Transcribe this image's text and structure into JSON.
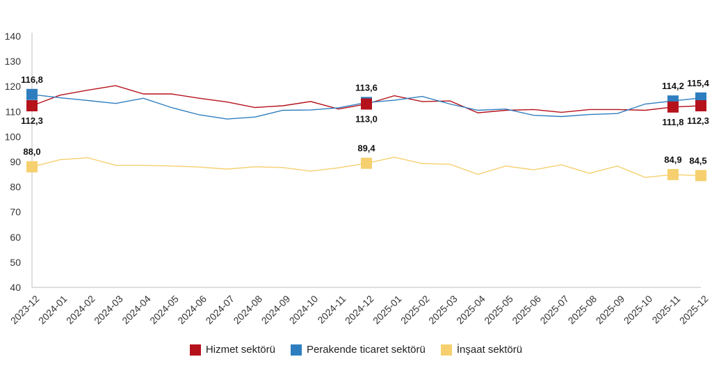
{
  "chart_data": {
    "type": "line",
    "x": [
      "2023-12",
      "2024-01",
      "2024-02",
      "2024-03",
      "2024-04",
      "2024-05",
      "2024-06",
      "2024-07",
      "2024-08",
      "2024-09",
      "2024-10",
      "2024-11",
      "2024-12",
      "2025-01",
      "2025-02",
      "2025-03",
      "2025-04",
      "2025-05",
      "2025-06",
      "2025-07",
      "2025-08",
      "2025-09",
      "2025-10",
      "2025-11",
      "2025-12"
    ],
    "ylim": [
      40,
      140
    ],
    "yticks": [
      "40",
      "50",
      "60",
      "70",
      "80",
      "90",
      "100",
      "110",
      "120",
      "130",
      "140"
    ],
    "grid": false,
    "legend_position": "bottom",
    "series": [
      {
        "name": "Hizmet sektörü",
        "color": "#B5121B",
        "values": [
          112.3,
          116.5,
          118.5,
          120.3,
          117.0,
          117.0,
          115.3,
          113.8,
          111.6,
          112.3,
          114.0,
          111.0,
          113.0,
          116.3,
          114.0,
          114.2,
          109.5,
          110.5,
          110.8,
          109.7,
          110.8,
          110.8,
          110.5,
          111.8,
          112.3
        ],
        "markers": [
          {
            "index": 0,
            "label": "112,3",
            "pos": "below"
          },
          {
            "index": 12,
            "label": "113,0",
            "pos": "below"
          },
          {
            "index": 23,
            "label": "111,8",
            "pos": "below"
          },
          {
            "index": 24,
            "label": "112,3",
            "pos": "below"
          }
        ]
      },
      {
        "name": "Perakende ticaret sektörü",
        "color": "#2E7EBF",
        "values": [
          116.8,
          115.5,
          114.4,
          113.2,
          115.3,
          111.6,
          108.7,
          107.0,
          107.8,
          110.5,
          110.6,
          111.5,
          113.6,
          114.5,
          116.0,
          113.0,
          110.5,
          111.0,
          108.5,
          108.0,
          108.8,
          109.2,
          113.0,
          114.2,
          115.4
        ],
        "markers": [
          {
            "index": 0,
            "label": "116,8",
            "pos": "above"
          },
          {
            "index": 12,
            "label": "113,6",
            "pos": "above"
          },
          {
            "index": 23,
            "label": "114,2",
            "pos": "above"
          },
          {
            "index": 24,
            "label": "115,4",
            "pos": "above"
          }
        ]
      },
      {
        "name": "İnşaat sektörü",
        "color": "#F6D06F",
        "values": [
          88.0,
          90.8,
          91.6,
          88.6,
          88.6,
          88.3,
          87.9,
          87.1,
          88.0,
          87.7,
          86.3,
          87.6,
          89.4,
          91.8,
          89.3,
          89.0,
          85.0,
          88.3,
          86.8,
          88.8,
          85.4,
          88.3,
          83.8,
          84.9,
          84.5
        ],
        "markers": [
          {
            "index": 0,
            "label": "88,0",
            "pos": "above"
          },
          {
            "index": 12,
            "label": "89,4",
            "pos": "above"
          },
          {
            "index": 23,
            "label": "84,9",
            "pos": "above"
          },
          {
            "index": 24,
            "label": "84,5",
            "pos": "above"
          }
        ]
      }
    ]
  }
}
